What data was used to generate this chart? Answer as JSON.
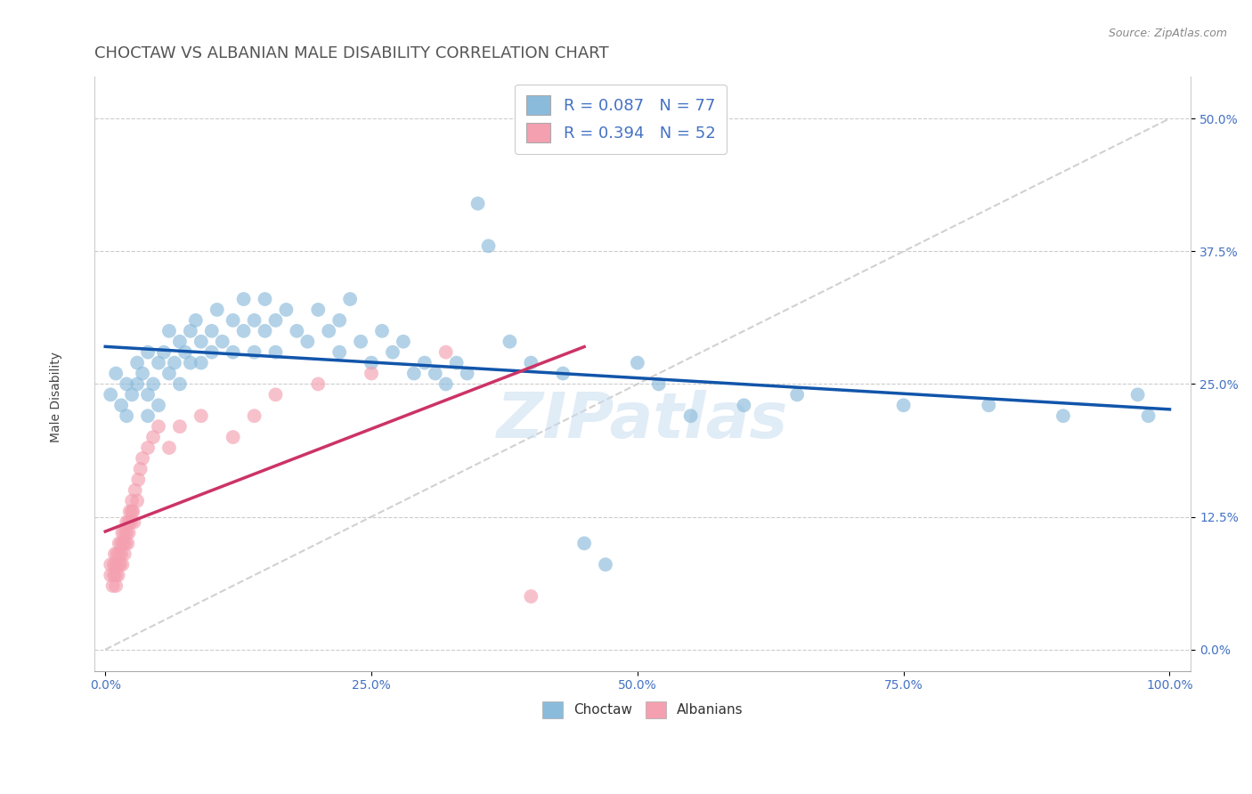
{
  "title": "CHOCTAW VS ALBANIAN MALE DISABILITY CORRELATION CHART",
  "source_text": "Source: ZipAtlas.com",
  "ylabel": "Male Disability",
  "xlim": [
    -0.01,
    1.02
  ],
  "ylim": [
    -0.02,
    0.54
  ],
  "xticks": [
    0.0,
    0.25,
    0.5,
    0.75,
    1.0
  ],
  "xticklabels": [
    "0.0%",
    "25.0%",
    "50.0%",
    "75.0%",
    "100.0%"
  ],
  "yticks": [
    0.0,
    0.125,
    0.25,
    0.375,
    0.5
  ],
  "yticklabels": [
    "0.0%",
    "12.5%",
    "25.0%",
    "37.5%",
    "50.0%"
  ],
  "choctaw_color": "#8abbdb",
  "albanian_color": "#f4a0b0",
  "choctaw_R": 0.087,
  "choctaw_N": 77,
  "albanian_R": 0.394,
  "albanian_N": 52,
  "legend_label_choctaw": "Choctaw",
  "legend_label_albanian": "Albanians",
  "title_color": "#555555",
  "legend_text_color": "#4472c4",
  "watermark": "ZIPatlas",
  "grid_color": "#cccccc",
  "trend_choctaw_color": "#1155aa",
  "trend_albanian_color": "#cc3366",
  "trend_diagonal_color": "#cccccc",
  "background_color": "#ffffff",
  "title_fontsize": 13,
  "label_fontsize": 10,
  "tick_fontsize": 10,
  "choctaw_x": [
    0.005,
    0.01,
    0.015,
    0.02,
    0.02,
    0.025,
    0.03,
    0.03,
    0.035,
    0.04,
    0.04,
    0.04,
    0.045,
    0.05,
    0.05,
    0.055,
    0.06,
    0.06,
    0.065,
    0.07,
    0.07,
    0.075,
    0.08,
    0.08,
    0.085,
    0.09,
    0.09,
    0.1,
    0.1,
    0.105,
    0.11,
    0.12,
    0.12,
    0.13,
    0.13,
    0.14,
    0.14,
    0.15,
    0.15,
    0.16,
    0.16,
    0.17,
    0.18,
    0.19,
    0.2,
    0.21,
    0.22,
    0.22,
    0.23,
    0.24,
    0.25,
    0.26,
    0.27,
    0.28,
    0.29,
    0.3,
    0.31,
    0.32,
    0.33,
    0.34,
    0.35,
    0.36,
    0.38,
    0.4,
    0.43,
    0.45,
    0.5,
    0.52,
    0.55,
    0.6,
    0.65,
    0.75,
    0.83,
    0.9,
    0.97,
    0.98,
    0.47
  ],
  "choctaw_y": [
    0.24,
    0.26,
    0.23,
    0.25,
    0.22,
    0.24,
    0.27,
    0.25,
    0.26,
    0.28,
    0.24,
    0.22,
    0.25,
    0.27,
    0.23,
    0.28,
    0.26,
    0.3,
    0.27,
    0.29,
    0.25,
    0.28,
    0.3,
    0.27,
    0.31,
    0.29,
    0.27,
    0.3,
    0.28,
    0.32,
    0.29,
    0.31,
    0.28,
    0.33,
    0.3,
    0.31,
    0.28,
    0.3,
    0.33,
    0.31,
    0.28,
    0.32,
    0.3,
    0.29,
    0.32,
    0.3,
    0.31,
    0.28,
    0.33,
    0.29,
    0.27,
    0.3,
    0.28,
    0.29,
    0.26,
    0.27,
    0.26,
    0.25,
    0.27,
    0.26,
    0.42,
    0.38,
    0.29,
    0.27,
    0.26,
    0.1,
    0.27,
    0.25,
    0.22,
    0.23,
    0.24,
    0.23,
    0.23,
    0.22,
    0.24,
    0.22,
    0.08
  ],
  "albanian_x": [
    0.005,
    0.005,
    0.007,
    0.008,
    0.008,
    0.009,
    0.01,
    0.01,
    0.01,
    0.011,
    0.012,
    0.012,
    0.013,
    0.013,
    0.014,
    0.015,
    0.015,
    0.016,
    0.016,
    0.017,
    0.018,
    0.018,
    0.019,
    0.02,
    0.02,
    0.021,
    0.022,
    0.022,
    0.023,
    0.024,
    0.025,
    0.025,
    0.026,
    0.027,
    0.028,
    0.03,
    0.031,
    0.033,
    0.035,
    0.04,
    0.045,
    0.05,
    0.06,
    0.07,
    0.09,
    0.12,
    0.14,
    0.16,
    0.2,
    0.25,
    0.32,
    0.4
  ],
  "albanian_y": [
    0.07,
    0.08,
    0.06,
    0.08,
    0.07,
    0.09,
    0.07,
    0.08,
    0.06,
    0.09,
    0.08,
    0.07,
    0.09,
    0.1,
    0.08,
    0.1,
    0.09,
    0.08,
    0.11,
    0.1,
    0.09,
    0.11,
    0.1,
    0.12,
    0.11,
    0.1,
    0.12,
    0.11,
    0.13,
    0.12,
    0.13,
    0.14,
    0.13,
    0.12,
    0.15,
    0.14,
    0.16,
    0.17,
    0.18,
    0.19,
    0.2,
    0.21,
    0.19,
    0.21,
    0.22,
    0.2,
    0.22,
    0.24,
    0.25,
    0.26,
    0.28,
    0.05
  ]
}
